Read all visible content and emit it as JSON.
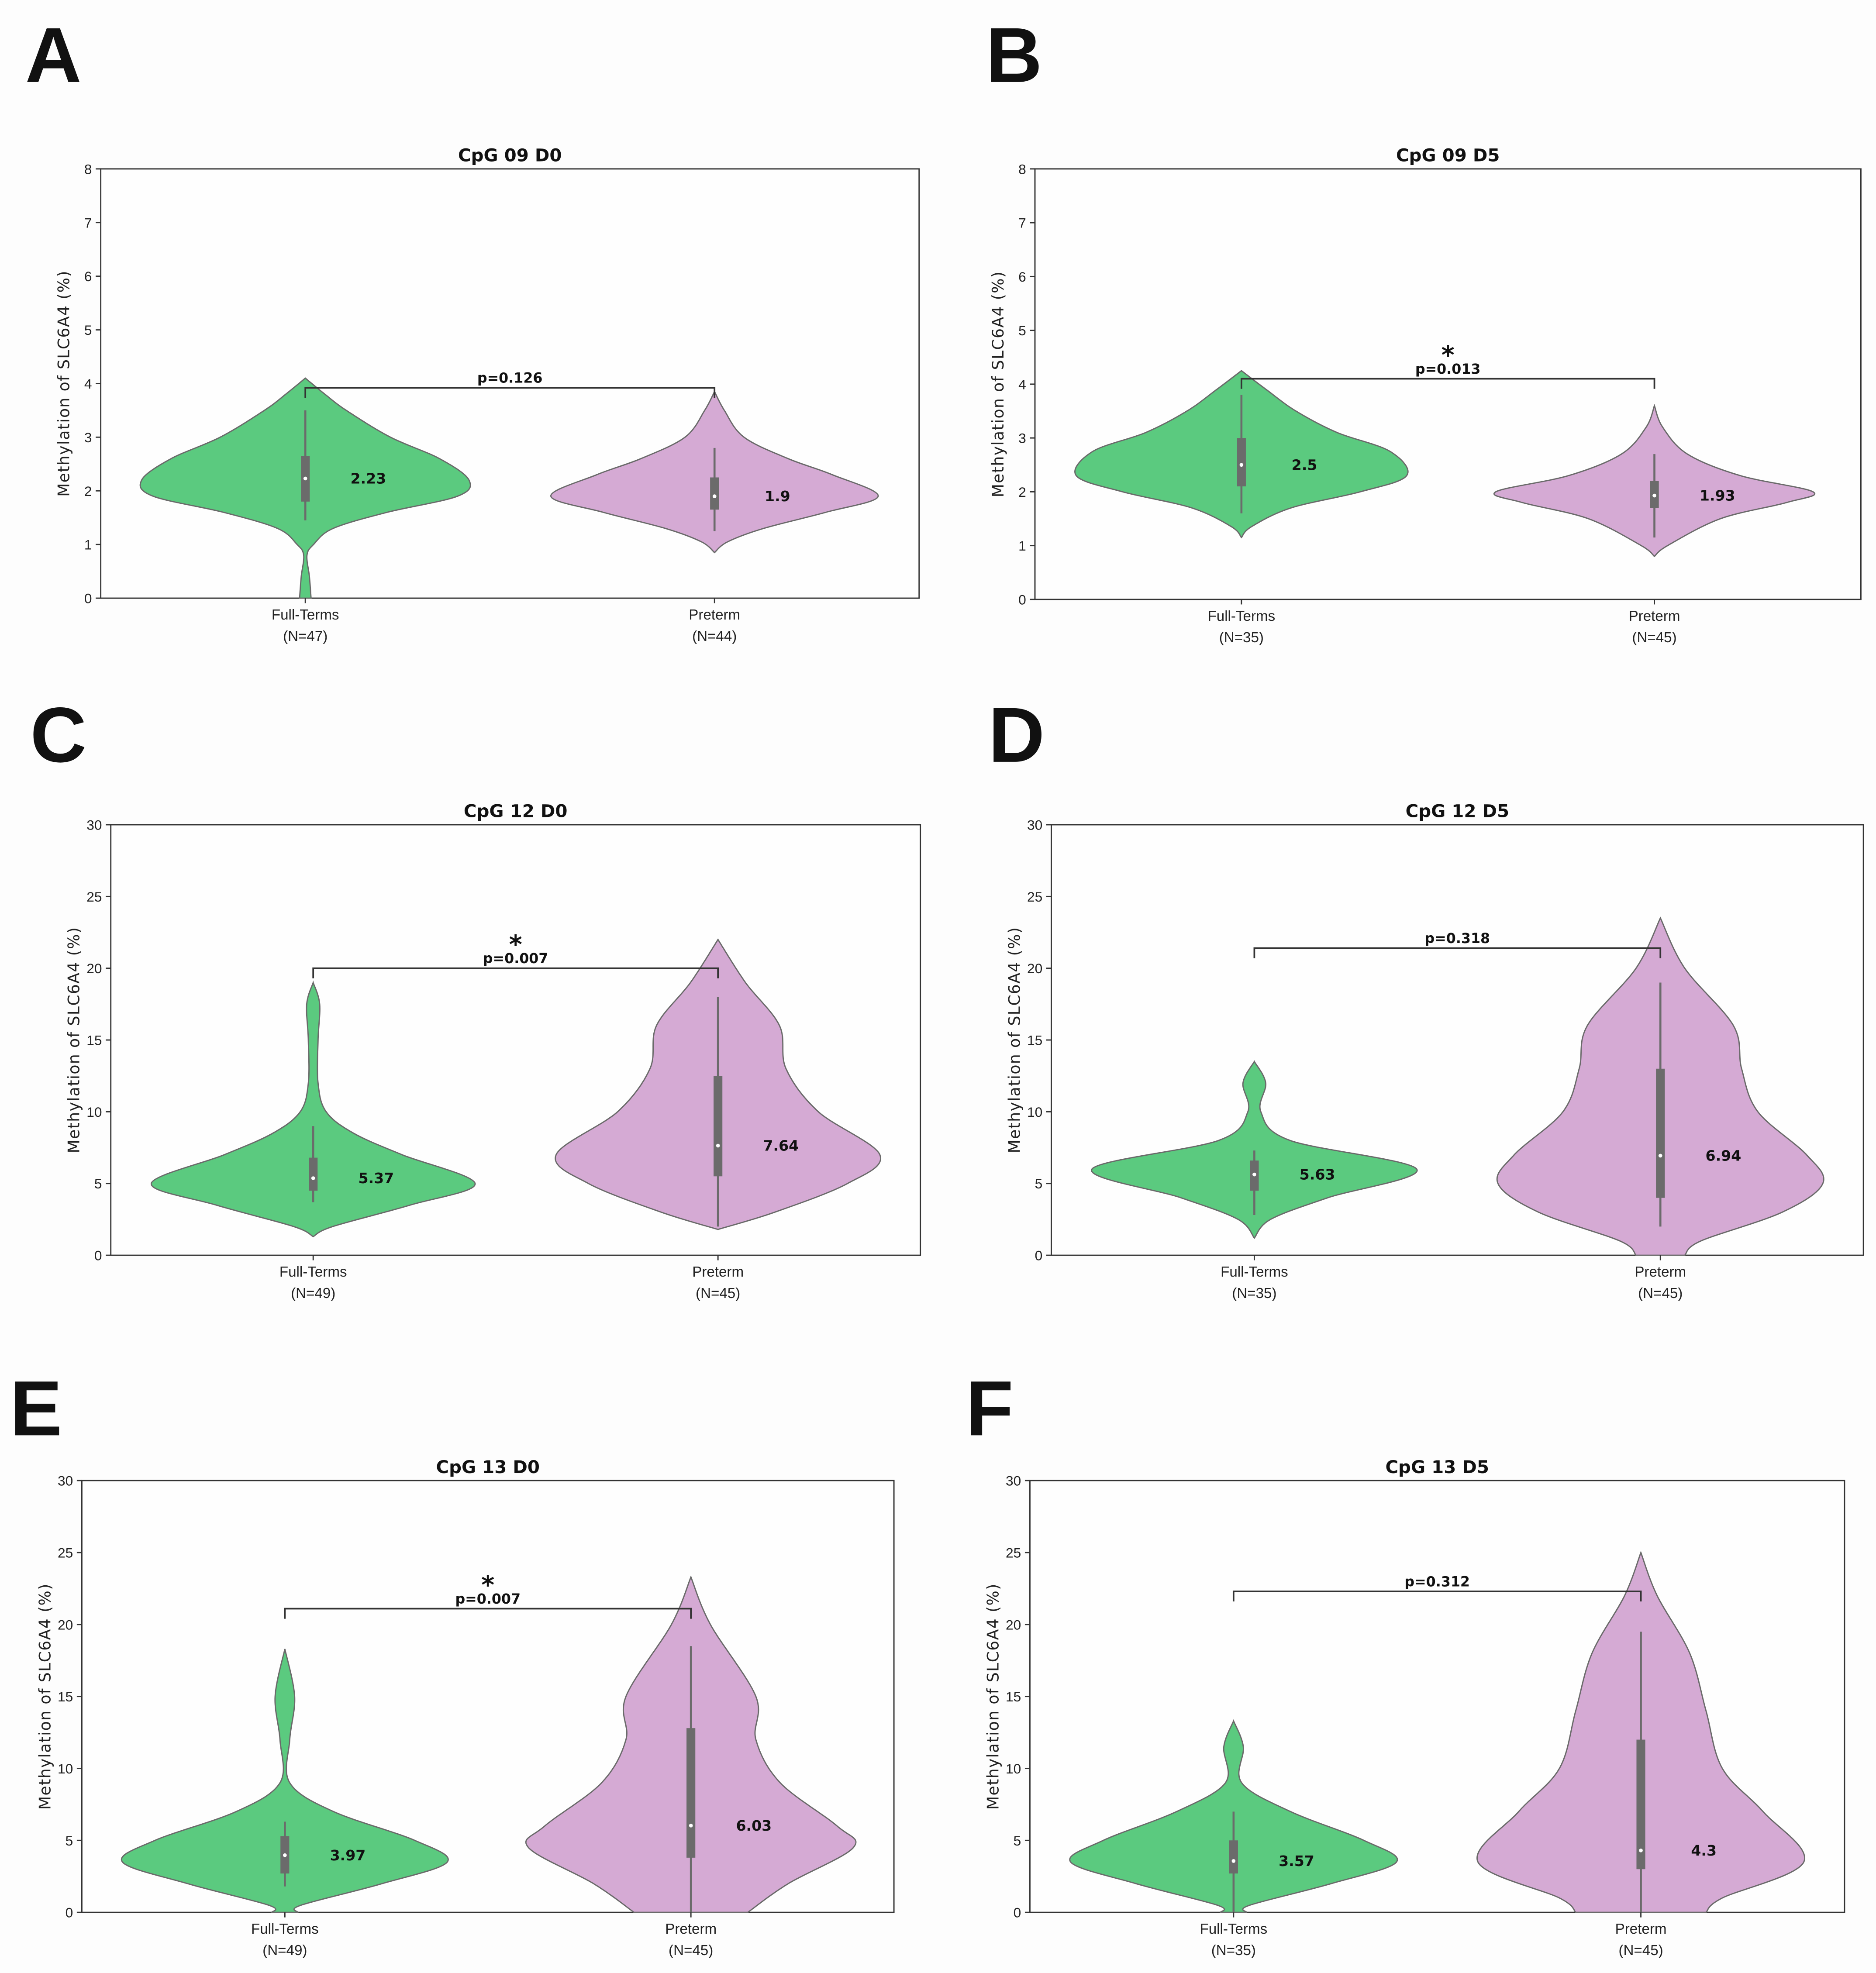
{
  "colors": {
    "full_terms": "#5bca7f",
    "preterm": "#d5aad4",
    "edge": "#6a6a6a",
    "box": "#6b6b6b"
  },
  "chart_data": [
    {
      "type": "violin",
      "panel": "A",
      "title": "CpG 09 D0",
      "ylabel": "Methylation of SLC6A4 (%)",
      "ylim": [
        0,
        8
      ],
      "yticks": [
        "0",
        "1",
        "2",
        "3",
        "4",
        "5",
        "6",
        "7",
        "8"
      ],
      "groups": [
        {
          "name": "Full-Terms",
          "n_label": "(N=47)",
          "median": 2.23,
          "median_label": "2.23",
          "q1": 1.8,
          "q3": 2.65,
          "whisker": [
            1.45,
            3.5
          ],
          "density": [
            [
              4.1,
              0
            ],
            [
              3.8,
              0.12
            ],
            [
              3.5,
              0.25
            ],
            [
              3.0,
              0.52
            ],
            [
              2.6,
              0.82
            ],
            [
              2.2,
              1.0
            ],
            [
              1.9,
              0.93
            ],
            [
              1.6,
              0.5
            ],
            [
              1.3,
              0.17
            ],
            [
              1.0,
              0.05
            ],
            [
              0.8,
              0.01
            ],
            [
              0.4,
              0.025
            ],
            [
              0,
              0.035
            ]
          ]
        },
        {
          "name": "Preterm",
          "n_label": "(N=44)",
          "median": 1.9,
          "median_label": "1.9",
          "q1": 1.65,
          "q3": 2.25,
          "whisker": [
            1.25,
            2.8
          ],
          "density": [
            [
              3.85,
              0
            ],
            [
              3.5,
              0.06
            ],
            [
              3.0,
              0.18
            ],
            [
              2.6,
              0.45
            ],
            [
              2.3,
              0.72
            ],
            [
              1.9,
              1.0
            ],
            [
              1.6,
              0.68
            ],
            [
              1.3,
              0.3
            ],
            [
              1.05,
              0.08
            ],
            [
              0.85,
              0
            ]
          ]
        }
      ],
      "comparison": {
        "p_label": "p=0.126",
        "significant": false,
        "star": "",
        "bracket_y": 3.92
      }
    },
    {
      "type": "violin",
      "panel": "B",
      "title": "CpG 09 D5",
      "ylabel": "Methylation of SLC6A4 (%)",
      "ylim": [
        0,
        8
      ],
      "yticks": [
        "0",
        "1",
        "2",
        "3",
        "4",
        "5",
        "6",
        "7",
        "8"
      ],
      "groups": [
        {
          "name": "Full-Terms",
          "n_label": "(N=35)",
          "median": 2.5,
          "median_label": "2.5",
          "q1": 2.1,
          "q3": 3.0,
          "whisker": [
            1.6,
            3.8
          ],
          "density": [
            [
              4.25,
              0
            ],
            [
              3.9,
              0.15
            ],
            [
              3.5,
              0.33
            ],
            [
              3.1,
              0.58
            ],
            [
              2.75,
              0.9
            ],
            [
              2.3,
              1.0
            ],
            [
              2.0,
              0.72
            ],
            [
              1.7,
              0.3
            ],
            [
              1.35,
              0.06
            ],
            [
              1.15,
              0
            ]
          ]
        },
        {
          "name": "Preterm",
          "n_label": "(N=45)",
          "median": 1.93,
          "median_label": "1.93",
          "q1": 1.7,
          "q3": 2.2,
          "whisker": [
            1.15,
            2.7
          ],
          "density": [
            [
              3.6,
              0
            ],
            [
              3.2,
              0.05
            ],
            [
              2.7,
              0.2
            ],
            [
              2.3,
              0.52
            ],
            [
              2.0,
              0.96
            ],
            [
              1.8,
              0.8
            ],
            [
              1.5,
              0.4
            ],
            [
              1.0,
              0.08
            ],
            [
              0.8,
              0
            ]
          ]
        }
      ],
      "comparison": {
        "p_label": "p=0.013",
        "significant": true,
        "star": "*",
        "bracket_y": 4.1
      }
    },
    {
      "type": "violin",
      "panel": "C",
      "title": "CpG 12 D0",
      "ylabel": "Methylation of SLC6A4 (%)",
      "ylim": [
        0,
        30
      ],
      "yticks": [
        "0",
        "5",
        "10",
        "15",
        "20",
        "25",
        "30"
      ],
      "groups": [
        {
          "name": "Full-Terms",
          "n_label": "(N=49)",
          "median": 5.37,
          "median_label": "5.37",
          "q1": 4.5,
          "q3": 6.8,
          "whisker": [
            3.7,
            9.0
          ],
          "density": [
            [
              19,
              0
            ],
            [
              17.5,
              0.04
            ],
            [
              15,
              0.03
            ],
            [
              12,
              0.03
            ],
            [
              10,
              0.08
            ],
            [
              8.5,
              0.25
            ],
            [
              7,
              0.55
            ],
            [
              5,
              1.0
            ],
            [
              3.5,
              0.6
            ],
            [
              2,
              0.12
            ],
            [
              1.3,
              0
            ]
          ]
        },
        {
          "name": "Preterm",
          "n_label": "(N=45)",
          "median": 7.64,
          "median_label": "7.64",
          "q1": 5.5,
          "q3": 12.5,
          "whisker": [
            2.0,
            18.0
          ],
          "density": [
            [
              22,
              0
            ],
            [
              19,
              0.17
            ],
            [
              16,
              0.38
            ],
            [
              13,
              0.42
            ],
            [
              10,
              0.62
            ],
            [
              7,
              1.0
            ],
            [
              5,
              0.8
            ],
            [
              3,
              0.35
            ],
            [
              1.8,
              0
            ]
          ]
        }
      ],
      "comparison": {
        "p_label": "p=0.007",
        "significant": true,
        "star": "*",
        "bracket_y": 20
      }
    },
    {
      "type": "violin",
      "panel": "D",
      "title": "CpG 12 D5",
      "ylabel": "Methylation of SLC6A4 (%)",
      "ylim": [
        0,
        30
      ],
      "yticks": [
        "0",
        "5",
        "10",
        "15",
        "20",
        "25",
        "30"
      ],
      "groups": [
        {
          "name": "Full-Terms",
          "n_label": "(N=35)",
          "median": 5.63,
          "median_label": "5.63",
          "q1": 4.5,
          "q3": 6.6,
          "whisker": [
            2.8,
            7.3
          ],
          "density": [
            [
              13.5,
              0
            ],
            [
              12,
              0.07
            ],
            [
              10,
              0.04
            ],
            [
              8,
              0.22
            ],
            [
              6,
              1.0
            ],
            [
              4,
              0.45
            ],
            [
              2.5,
              0.1
            ],
            [
              1.2,
              0
            ]
          ]
        },
        {
          "name": "Preterm",
          "n_label": "(N=45)",
          "median": 6.94,
          "median_label": "6.94",
          "q1": 4.0,
          "q3": 13.0,
          "whisker": [
            2.0,
            19.0
          ],
          "density": [
            [
              23.5,
              0
            ],
            [
              20,
              0.15
            ],
            [
              16,
              0.45
            ],
            [
              13,
              0.5
            ],
            [
              10,
              0.6
            ],
            [
              7,
              0.9
            ],
            [
              5,
              1.0
            ],
            [
              3,
              0.75
            ],
            [
              1,
              0.25
            ],
            [
              0,
              0.15
            ]
          ]
        }
      ],
      "comparison": {
        "p_label": "p=0.318",
        "significant": false,
        "star": "",
        "bracket_y": 21.4
      }
    },
    {
      "type": "violin",
      "panel": "E",
      "title": "CpG 13 D0",
      "ylabel": "Methylation of SLC6A4 (%)",
      "ylim": [
        0,
        30
      ],
      "yticks": [
        "0",
        "5",
        "10",
        "15",
        "20",
        "25",
        "30"
      ],
      "groups": [
        {
          "name": "Full-Terms",
          "n_label": "(N=49)",
          "median": 3.97,
          "median_label": "3.97",
          "q1": 2.7,
          "q3": 5.3,
          "whisker": [
            1.8,
            6.3
          ],
          "density": [
            [
              18.3,
              0
            ],
            [
              15,
              0.06
            ],
            [
              12,
              0.03
            ],
            [
              9,
              0.03
            ],
            [
              7,
              0.3
            ],
            [
              5,
              0.8
            ],
            [
              3.5,
              1.0
            ],
            [
              2,
              0.6
            ],
            [
              0.5,
              0.1
            ],
            [
              0,
              0.08
            ]
          ]
        },
        {
          "name": "Preterm",
          "n_label": "(N=45)",
          "median": 6.03,
          "median_label": "6.03",
          "q1": 3.8,
          "q3": 12.8,
          "whisker": [
            0,
            18.5
          ],
          "density": [
            [
              23.3,
              0
            ],
            [
              20,
              0.12
            ],
            [
              15,
              0.4
            ],
            [
              12,
              0.4
            ],
            [
              9,
              0.55
            ],
            [
              6,
              0.9
            ],
            [
              4.5,
              1.0
            ],
            [
              2,
              0.6
            ],
            [
              0,
              0.35
            ]
          ]
        }
      ],
      "comparison": {
        "p_label": "p=0.007",
        "significant": true,
        "star": "*",
        "bracket_y": 21.1
      }
    },
    {
      "type": "violin",
      "panel": "F",
      "title": "CpG 13 D5",
      "ylabel": "Methylation of SLC6A4 (%)",
      "ylim": [
        0,
        30
      ],
      "yticks": [
        "0",
        "5",
        "10",
        "15",
        "20",
        "25",
        "30"
      ],
      "groups": [
        {
          "name": "Full-Terms",
          "n_label": "(N=35)",
          "median": 3.57,
          "median_label": "3.57",
          "q1": 2.7,
          "q3": 5.0,
          "whisker": [
            0,
            7.0
          ],
          "density": [
            [
              13.3,
              0
            ],
            [
              11.5,
              0.06
            ],
            [
              9,
              0.05
            ],
            [
              7,
              0.35
            ],
            [
              5,
              0.8
            ],
            [
              3.5,
              1.0
            ],
            [
              2,
              0.6
            ],
            [
              0.5,
              0.1
            ],
            [
              0,
              0.08
            ]
          ]
        },
        {
          "name": "Preterm",
          "n_label": "(N=45)",
          "median": 4.3,
          "median_label": "4.3",
          "q1": 3.0,
          "q3": 12.0,
          "whisker": [
            0,
            19.5
          ],
          "density": [
            [
              25,
              0
            ],
            [
              22,
              0.1
            ],
            [
              18,
              0.3
            ],
            [
              14,
              0.4
            ],
            [
              10,
              0.5
            ],
            [
              7,
              0.75
            ],
            [
              3.5,
              1.0
            ],
            [
              1,
              0.5
            ],
            [
              0,
              0.4
            ]
          ]
        }
      ],
      "comparison": {
        "p_label": "p=0.312",
        "significant": false,
        "star": "",
        "bracket_y": 22.3
      }
    }
  ]
}
